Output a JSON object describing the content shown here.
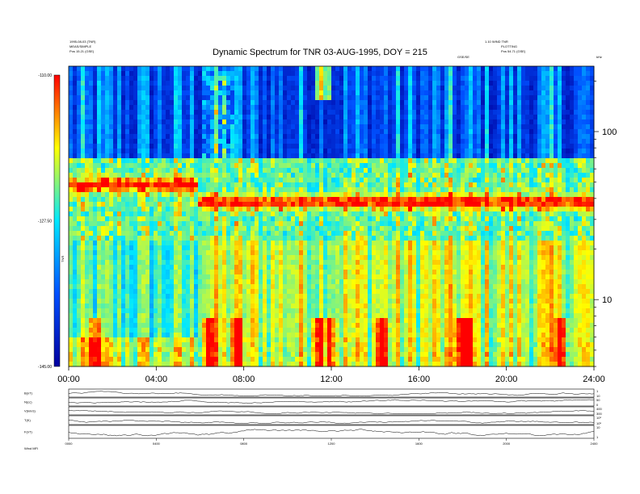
{
  "header": {
    "title": "Dynamic Spectrum for TNR 03-AUG-1995, DOY = 215",
    "info_left_line1": "1995-08-03 (TNR)",
    "info_left_line2": "MEAS/SIMPLE",
    "info_left_line3": "Pos 15.21 (GSE)",
    "info_right_line1": "1.10 WIND TNR",
    "info_right_line2": "PLOTTING",
    "info_right_line3": "Pos 54.71 (GSE)",
    "center_small": "GSE/SE",
    "right_unit": "kHz"
  },
  "chart_data": {
    "type": "heatmap",
    "title": "Dynamic Spectrum for TNR 03-AUG-1995, DOY = 215",
    "x_ticks": [
      "00:00",
      "04:00",
      "08:00",
      "12:00",
      "16:00",
      "20:00",
      "24:00"
    ],
    "xlim_hours": [
      0,
      24
    ],
    "y_scale": "log",
    "ylim_khz": [
      4,
      245
    ],
    "y_ticks_right": [
      "100",
      "10"
    ],
    "colorbar": {
      "label": "TNR",
      "ticks": [
        "-110.00",
        "-127.50",
        "-145.00"
      ],
      "range": [
        -145,
        -110
      ],
      "colors": [
        "#0000a0",
        "#0050ff",
        "#00e8ff",
        "#ffff00",
        "#ff0000"
      ]
    },
    "sub_panels": [
      {
        "label": "B(nT)",
        "ticks": [
          "1",
          "10"
        ]
      },
      {
        "label": "N(cc)",
        "ticks": [
          "50",
          "0"
        ]
      },
      {
        "label": "V(km/s)",
        "ticks": [
          "400",
          "300"
        ]
      },
      {
        "label": "T(K)",
        "ticks": [
          "10⁶",
          "10⁵"
        ]
      },
      {
        "label": "F(nT)",
        "ticks": [
          "10",
          "1"
        ]
      }
    ],
    "bottom_x_ticks": [
      "0000",
      "0400",
      "0800",
      "1200",
      "1600",
      "2000",
      "2400"
    ],
    "bottom_note": "Wind  MFI"
  }
}
